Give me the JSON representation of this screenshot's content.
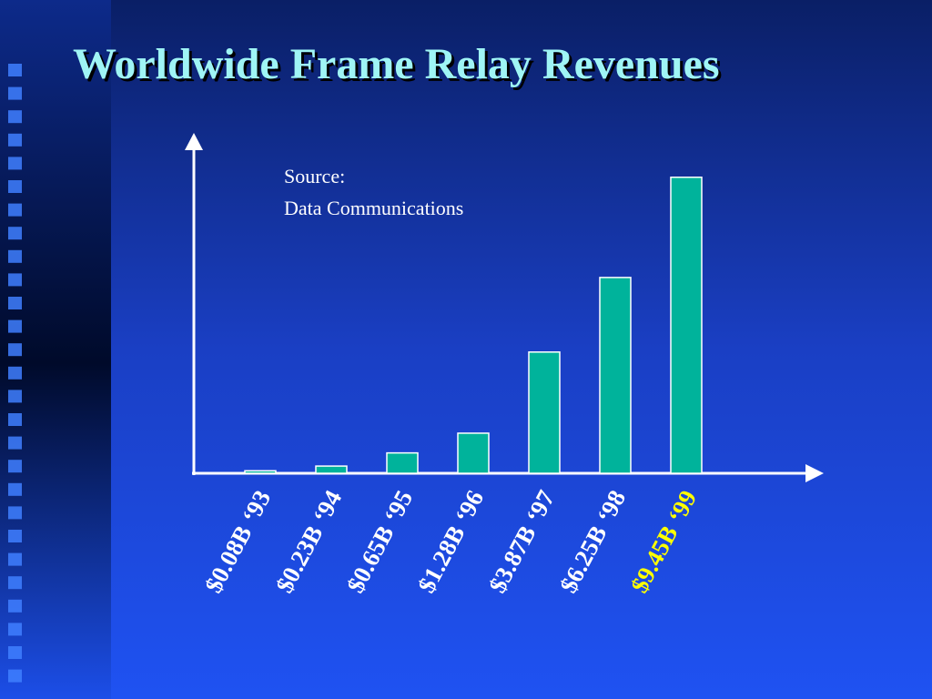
{
  "chart_data": {
    "type": "bar",
    "title": "Worldwide Frame Relay Revenues",
    "annotation": [
      "Source:",
      "Data Communications"
    ],
    "categories": [
      "‘93",
      "‘94",
      "‘95",
      "‘96",
      "‘97",
      "‘98",
      "‘99"
    ],
    "values": [
      0.08,
      0.23,
      0.65,
      1.28,
      3.87,
      6.25,
      9.45
    ],
    "value_labels": [
      "$0.08B",
      "$0.23B",
      "$0.65B",
      "$1.28B",
      "$3.87B",
      "$6.25B",
      "$9.45B"
    ],
    "value_label_colors": [
      "#ffffff",
      "#ffffff",
      "#ffffff",
      "#ffffff",
      "#ffffff",
      "#ffffff",
      "#ffff00"
    ],
    "color": "#00b39b",
    "ylim": [
      0,
      10.75
    ]
  }
}
